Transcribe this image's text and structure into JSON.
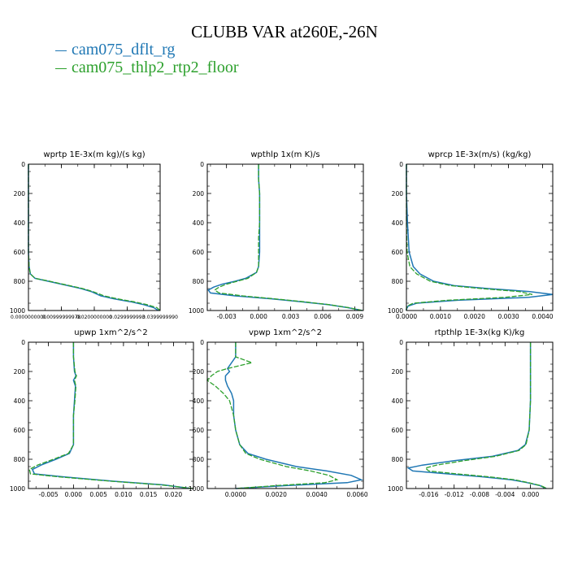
{
  "title": "CLUBB VAR at260E,-26N",
  "legend": [
    {
      "name": "cam075_dflt_rg",
      "color": "#1f77b4"
    },
    {
      "name": "cam075_thlp2_rtp2_floor",
      "color": "#2ca02c"
    }
  ],
  "chart_data": [
    {
      "type": "line",
      "title": "wprtp  1E-3x(m kg)/(s kg)",
      "xlim": [
        0.0,
        0.04
      ],
      "ylim": [
        1000,
        0
      ],
      "xticks": [
        0.0,
        0.01,
        0.02,
        0.03,
        0.04
      ],
      "xtick_labels": [
        "0.0000000000",
        "0.00999999978",
        "0.0200000000",
        "0.0299999993",
        "0.0399999990"
      ],
      "yticks": [
        0,
        200,
        400,
        600,
        800,
        1000
      ],
      "y": [
        0,
        200,
        400,
        600,
        700,
        750,
        780,
        800,
        830,
        850,
        870,
        900,
        920,
        940,
        960,
        980,
        1000
      ],
      "series": [
        {
          "name": "cam075_dflt_rg",
          "values": [
            0.0,
            0.0,
            0.0,
            0.0,
            0.0002,
            0.0006,
            0.002,
            0.006,
            0.012,
            0.016,
            0.019,
            0.022,
            0.026,
            0.031,
            0.035,
            0.038,
            0.0395
          ]
        },
        {
          "name": "cam075_thlp2_rtp2_floor",
          "values": [
            0.0,
            0.0,
            0.0,
            0.0,
            0.0002,
            0.0006,
            0.002,
            0.0065,
            0.0125,
            0.0165,
            0.0195,
            0.023,
            0.027,
            0.032,
            0.036,
            0.039,
            0.04
          ]
        }
      ]
    },
    {
      "type": "line",
      "title": "wpthlp  1x(m K)/s",
      "xlim": [
        -0.0048,
        0.0098
      ],
      "ylim": [
        1000,
        0
      ],
      "xticks": [
        -0.003,
        0.0,
        0.003,
        0.006,
        0.009
      ],
      "xtick_labels": [
        "-0.003",
        "0.000",
        "0.003",
        "0.006",
        "0.009"
      ],
      "yticks": [
        0,
        200,
        400,
        600,
        800,
        1000
      ],
      "y": [
        0,
        100,
        200,
        300,
        400,
        500,
        600,
        700,
        740,
        780,
        800,
        820,
        840,
        860,
        880,
        900,
        920,
        940,
        960,
        980,
        1000
      ],
      "series": [
        {
          "name": "cam075_dflt_rg",
          "values": [
            0.0,
            0.0,
            0.0001,
            0.0001,
            0.0001,
            0.0001,
            0.0001,
            0.0,
            -0.0002,
            -0.0012,
            -0.0022,
            -0.0034,
            -0.0042,
            -0.0047,
            -0.0045,
            -0.0022,
            0.0012,
            0.004,
            0.0065,
            0.0083,
            0.0097
          ]
        },
        {
          "name": "cam075_thlp2_rtp2_floor",
          "values": [
            0.0,
            0.0,
            0.0001,
            0.0001,
            0.0001,
            0.0,
            0.0,
            0.0,
            -0.0002,
            -0.001,
            -0.002,
            -0.003,
            -0.0037,
            -0.0041,
            -0.0037,
            -0.0015,
            0.0015,
            0.0042,
            0.0066,
            0.0084,
            0.0097
          ]
        }
      ]
    },
    {
      "type": "line",
      "title": "wprcp  1E-3x(m/s) (kg/kg)",
      "xlim": [
        0.0,
        0.0043
      ],
      "ylim": [
        1000,
        0
      ],
      "xticks": [
        0.0,
        0.001,
        0.002,
        0.003,
        0.004
      ],
      "xtick_labels": [
        "0.0000",
        "0.0010",
        "0.0020",
        "0.0030",
        "0.0040"
      ],
      "yticks": [
        0,
        200,
        400,
        600,
        800,
        1000
      ],
      "y": [
        0,
        200,
        400,
        600,
        700,
        750,
        800,
        830,
        850,
        870,
        890,
        910,
        930,
        950,
        970,
        990,
        1000
      ],
      "series": [
        {
          "name": "cam075_dflt_rg",
          "values": [
            0.0,
            0.0,
            3e-05,
            8e-05,
            0.0002,
            0.0004,
            0.0008,
            0.0014,
            0.0024,
            0.0036,
            0.0043,
            0.0036,
            0.0015,
            0.0003,
            5e-05,
            0.0,
            0.0
          ]
        },
        {
          "name": "cam075_thlp2_rtp2_floor",
          "values": [
            0.0,
            0.0,
            0.0,
            2e-05,
            0.0001,
            0.0003,
            0.0007,
            0.0013,
            0.0022,
            0.0033,
            0.0037,
            0.0029,
            0.0012,
            0.0002,
            2e-05,
            0.0,
            0.0
          ]
        }
      ]
    },
    {
      "type": "line",
      "title": "upwp  1xm^2/s^2",
      "xlim": [
        -0.009,
        0.024
      ],
      "ylim": [
        1000,
        0
      ],
      "xticks": [
        -0.005,
        0.0,
        0.005,
        0.01,
        0.015,
        0.02
      ],
      "xtick_labels": [
        "-0.005",
        "0.000",
        "0.005",
        "0.010",
        "0.015",
        "0.020"
      ],
      "yticks": [
        0,
        200,
        400,
        600,
        800,
        1000
      ],
      "y": [
        0,
        100,
        200,
        230,
        260,
        300,
        400,
        500,
        600,
        700,
        760,
        800,
        840,
        870,
        900,
        920,
        950,
        975,
        1000
      ],
      "series": [
        {
          "name": "cam075_dflt_rg",
          "values": [
            0.0,
            0.0,
            0.0002,
            0.0005,
            0.0,
            0.0004,
            0.0002,
            0.0,
            0.0,
            0.0,
            -0.0008,
            -0.0035,
            -0.0065,
            -0.0082,
            -0.0078,
            -0.002,
            0.008,
            0.018,
            0.0235
          ]
        },
        {
          "name": "cam075_thlp2_rtp2_floor",
          "values": [
            0.0,
            0.0,
            0.0003,
            0.0006,
            0.0002,
            0.0005,
            0.0003,
            0.0,
            0.0,
            0.0,
            -0.001,
            -0.004,
            -0.0072,
            -0.0088,
            -0.0086,
            -0.003,
            0.0075,
            0.0175,
            0.024
          ]
        }
      ]
    },
    {
      "type": "line",
      "title": "vpwp  1xm^2/s^2",
      "xlim": [
        -0.0014,
        0.0063
      ],
      "ylim": [
        1000,
        0
      ],
      "xticks": [
        0.0,
        0.002,
        0.004,
        0.006
      ],
      "xtick_labels": [
        "0.0000",
        "0.0020",
        "0.0040",
        "0.0060"
      ],
      "yticks": [
        0,
        200,
        400,
        600,
        800,
        1000
      ],
      "y": [
        0,
        100,
        140,
        180,
        200,
        230,
        260,
        300,
        350,
        400,
        450,
        500,
        600,
        700,
        760,
        800,
        850,
        880,
        910,
        940,
        960,
        980,
        1000
      ],
      "series": [
        {
          "name": "cam075_dflt_rg",
          "values": [
            0.0,
            0.0,
            -0.0002,
            -0.0004,
            -0.0003,
            -0.0005,
            -0.0005,
            -0.0004,
            -0.0002,
            -0.0001,
            -0.0001,
            -0.0001,
            0.0,
            0.0002,
            0.0006,
            0.0015,
            0.003,
            0.0045,
            0.0057,
            0.0062,
            0.0055,
            0.0025,
            0.0
          ]
        },
        {
          "name": "cam075_thlp2_rtp2_floor",
          "values": [
            0.0,
            0.0,
            0.0008,
            -0.0004,
            -0.0009,
            -0.0012,
            -0.0014,
            -0.001,
            -0.0006,
            -0.0003,
            -0.0002,
            -0.0001,
            0.0,
            0.0002,
            0.0005,
            0.0012,
            0.0025,
            0.0037,
            0.0046,
            0.005,
            0.0044,
            0.002,
            0.0
          ]
        }
      ]
    },
    {
      "type": "line",
      "title": "rtpthlp  1E-3x(kg K)/kg",
      "xlim": [
        -0.0195,
        0.0035
      ],
      "ylim": [
        1000,
        0
      ],
      "xticks": [
        -0.016,
        -0.012,
        -0.008,
        -0.004,
        0.0
      ],
      "xtick_labels": [
        "-0.016",
        "-0.012",
        "-0.008",
        "-0.004",
        "0.000"
      ],
      "yticks": [
        0,
        200,
        400,
        600,
        800,
        1000
      ],
      "y": [
        0,
        200,
        400,
        600,
        700,
        740,
        780,
        810,
        840,
        860,
        880,
        900,
        920,
        940,
        960,
        980,
        1000
      ],
      "series": [
        {
          "name": "cam075_dflt_rg",
          "values": [
            0.0,
            0.0,
            0.0,
            -0.0002,
            -0.0008,
            -0.002,
            -0.006,
            -0.012,
            -0.017,
            -0.0192,
            -0.0185,
            -0.013,
            -0.0075,
            -0.003,
            -0.0005,
            0.0015,
            0.0025
          ]
        },
        {
          "name": "cam075_thlp2_rtp2_floor",
          "values": [
            0.0,
            0.0,
            0.0,
            -0.0002,
            -0.0007,
            -0.0018,
            -0.0055,
            -0.0105,
            -0.0148,
            -0.0165,
            -0.016,
            -0.0115,
            -0.0065,
            -0.0025,
            -0.0003,
            0.0016,
            0.0026
          ]
        }
      ]
    }
  ]
}
